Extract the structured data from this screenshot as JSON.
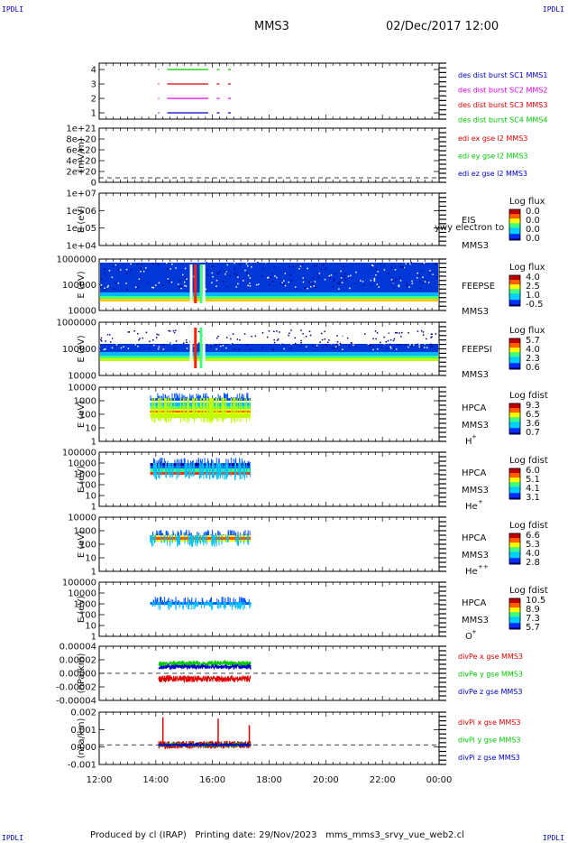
{
  "header": {
    "corner_label": "IPDLI",
    "spacecraft": "MMS3",
    "datetime": "02/Dec/2017 12:00"
  },
  "footer": {
    "produced_by": "Produced by cl (IRAP)",
    "printing_date": "Printing date: 29/Nov/2023",
    "filename": "mms_mms3_srvy_vue_web2.cl"
  },
  "chart_data": {
    "type": "multi-panel time series",
    "x_axis": {
      "range": [
        "12:00",
        "00:00"
      ],
      "tick_labels": [
        "12:00",
        "14:00",
        "16:00",
        "18:00",
        "20:00",
        "22:00",
        "00:00"
      ]
    },
    "panels": [
      {
        "id": "burst",
        "type": "line",
        "ylabel": "",
        "yticks": [
          "4",
          "3",
          "2",
          "1"
        ],
        "legend": [
          {
            "text": "des dist burst SC1 MMS1",
            "color": "#0000c8"
          },
          {
            "text": "des dist burst SC2 MMS2",
            "color": "#e000e0"
          },
          {
            "text": "des dist burst SC3 MMS3",
            "color": "#e00000"
          },
          {
            "text": "des dist burst SC4 MMS4",
            "color": "#00c800"
          }
        ],
        "segments": [
          {
            "level": 4,
            "color": "#00c800",
            "ranges": [
              [
                14.08,
                14.12
              ],
              [
                14.4,
                15.85
              ],
              [
                16.15,
                16.25
              ],
              [
                16.55,
                16.65
              ]
            ]
          },
          {
            "level": 3,
            "color": "#e00000",
            "ranges": [
              [
                14.08,
                14.12
              ],
              [
                14.4,
                15.85
              ],
              [
                16.15,
                16.25
              ],
              [
                16.55,
                16.65
              ]
            ]
          },
          {
            "level": 2,
            "color": "#e000e0",
            "ranges": [
              [
                14.08,
                14.12
              ],
              [
                14.4,
                15.85
              ],
              [
                16.15,
                16.25
              ],
              [
                16.55,
                16.65
              ]
            ]
          },
          {
            "level": 1,
            "color": "#0000c8",
            "ranges": [
              [
                14.08,
                14.12
              ],
              [
                14.4,
                15.85
              ],
              [
                16.15,
                16.25
              ],
              [
                16.55,
                16.65
              ]
            ]
          }
        ]
      },
      {
        "id": "edi",
        "type": "line",
        "ylabel": "(mV/m)",
        "yticks": [
          "1e+21",
          "8e+20",
          "6e+20",
          "4e+20",
          "2e+20",
          "0"
        ],
        "legend": [
          {
            "text": "edi ex gse l2 MMS3",
            "color": "#e00000"
          },
          {
            "text": "edi ey gse l2 MMS3",
            "color": "#00c800"
          },
          {
            "text": "edi ez gse l2 MMS3",
            "color": "#0000c8"
          }
        ]
      },
      {
        "id": "eis",
        "type": "heatmap",
        "ylabel": "E (eV)",
        "yticks": [
          "1e+07",
          "1e+06",
          "1e+05",
          "1e+04"
        ],
        "instrument": "EIS",
        "species": "ywy electron to",
        "spacecraft": "MMS3",
        "colorbar": {
          "title": "Log flux",
          "ticks": [
            "0.0",
            "0.0",
            "0.0",
            "0.0"
          ]
        }
      },
      {
        "id": "feeps_e",
        "type": "heatmap",
        "ylabel": "E (eV)",
        "yticks": [
          "1000000",
          "100000",
          "10000"
        ],
        "instrument": "FEEPSE",
        "spacecraft": "MMS3",
        "colorbar": {
          "title": "Log flux",
          "ticks": [
            "4.0",
            "2.5",
            "1.0",
            "-0.5"
          ]
        }
      },
      {
        "id": "feeps_i",
        "type": "heatmap",
        "ylabel": "E (eV)",
        "yticks": [
          "1000000",
          "100000",
          "10000"
        ],
        "instrument": "FEEPSI",
        "spacecraft": "MMS3",
        "colorbar": {
          "title": "Log flux",
          "ticks": [
            "5.7",
            "4.0",
            "2.3",
            "0.6"
          ]
        }
      },
      {
        "id": "hpca_h",
        "type": "heatmap",
        "ylabel": "E (eV)",
        "yticks": [
          "10000",
          "1000",
          "100",
          "10",
          "1"
        ],
        "instrument": "HPCA",
        "spacecraft": "MMS3",
        "ion": "H",
        "charge": "+",
        "colorbar": {
          "title": "Log fdist",
          "ticks": [
            "9.3",
            "6.5",
            "3.6",
            "0.7"
          ]
        }
      },
      {
        "id": "hpca_he",
        "type": "heatmap",
        "ylabel": "E (eV)",
        "yticks": [
          "100000",
          "10000",
          "1000",
          "100",
          "10",
          "1"
        ],
        "instrument": "HPCA",
        "spacecraft": "MMS3",
        "ion": "He",
        "charge": "+",
        "colorbar": {
          "title": "Log fdist",
          "ticks": [
            "6.0",
            "5.1",
            "4.1",
            "3.1"
          ]
        }
      },
      {
        "id": "hpca_hepp",
        "type": "heatmap",
        "ylabel": "E (eV)",
        "yticks": [
          "10000",
          "1000",
          "100",
          "10",
          "1"
        ],
        "instrument": "HPCA",
        "spacecraft": "MMS3",
        "ion": "He",
        "charge": "++",
        "colorbar": {
          "title": "Log fdist",
          "ticks": [
            "6.6",
            "5.3",
            "4.0",
            "2.8"
          ]
        }
      },
      {
        "id": "hpca_o",
        "type": "heatmap",
        "ylabel": "E (eV)",
        "yticks": [
          "100000",
          "10000",
          "1000",
          "100",
          "10",
          "1"
        ],
        "instrument": "HPCA",
        "spacecraft": "MMS3",
        "ion": "O",
        "charge": "+",
        "colorbar": {
          "title": "Log fdist",
          "ticks": [
            "10.5",
            "8.9",
            "7.3",
            "5.7"
          ]
        }
      },
      {
        "id": "divpe",
        "type": "line",
        "ylabel": "(nPa/km)",
        "yticks": [
          "0.00004",
          "0.00002",
          "0.00000",
          "-0.00002",
          "-0.00004"
        ],
        "ylim": [
          -5e-05,
          5e-05
        ],
        "legend": [
          {
            "text": "divPe x gse MMS3",
            "color": "#e00000"
          },
          {
            "text": "divPe y gse MMS3",
            "color": "#00c800"
          },
          {
            "text": "divPe z gse MMS3",
            "color": "#0000c8"
          }
        ],
        "series": [
          {
            "color": "#00c800",
            "mean": 1.8e-05,
            "spread": 5e-06
          },
          {
            "color": "#0000c8",
            "mean": 1.2e-05,
            "spread": 4e-06
          },
          {
            "color": "#e00000",
            "mean": -1e-05,
            "spread": 6e-06
          }
        ],
        "time_range": [
          14.1,
          17.35
        ]
      },
      {
        "id": "divpi",
        "type": "line",
        "ylabel": "(nPa/km)",
        "yticks": [
          "0.002",
          "0.001",
          "0.000",
          "-0.001"
        ],
        "ylim": [
          -0.0015,
          0.0025
        ],
        "legend": [
          {
            "text": "divPi x gse MMS3",
            "color": "#e00000"
          },
          {
            "text": "divPi y gse MMS3",
            "color": "#00c800"
          },
          {
            "text": "divPi z gse MMS3",
            "color": "#0000c8"
          }
        ],
        "series": [
          {
            "color": "#e00000",
            "mean": 0.0,
            "spread": 0.0003
          },
          {
            "color": "#00c800",
            "mean": 0.0,
            "spread": 0.00015
          },
          {
            "color": "#0000c8",
            "mean": 0.0,
            "spread": 0.0001
          }
        ],
        "spikes": [
          [
            14.25,
            0.0021
          ],
          [
            16.2,
            0.002
          ],
          [
            17.3,
            0.0015
          ]
        ],
        "time_range": [
          14.1,
          17.35
        ]
      }
    ]
  }
}
